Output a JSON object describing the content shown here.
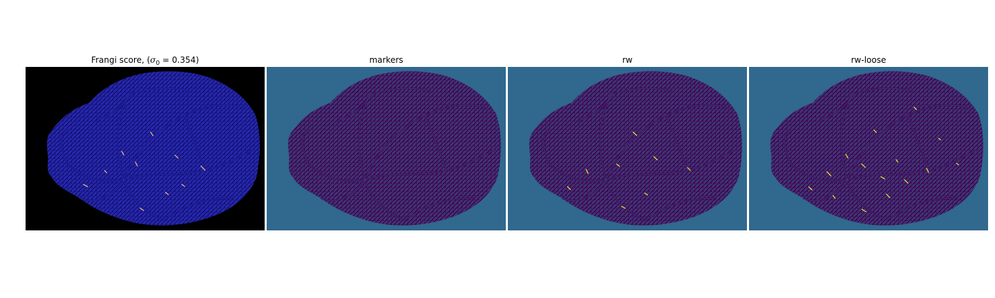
{
  "figure": {
    "panels": [
      {
        "id": "frangi",
        "title_prefix": "Frangi score, (",
        "title_symbol": "σ",
        "title_subscript": "0",
        "title_value": " = 0.354)",
        "background_color": "#000000",
        "tissue_color": "#12127a",
        "vessel_color": "#3a3ad8",
        "highlight_color": "#f2c27a"
      },
      {
        "id": "markers",
        "title": "markers",
        "background_color": "#31688e",
        "tissue_color": "#440154",
        "vessel_color": "#31688e",
        "highlight_color": "#31688e"
      },
      {
        "id": "rw",
        "title": "rw",
        "background_color": "#31688e",
        "tissue_color": "#440154",
        "vessel_color": "#31688e",
        "highlight_color": "#fde725"
      },
      {
        "id": "rw-loose",
        "title": "rw-loose",
        "background_color": "#31688e",
        "tissue_color": "#440154",
        "vessel_color": "#31688e",
        "highlight_color": "#fde725"
      }
    ]
  }
}
